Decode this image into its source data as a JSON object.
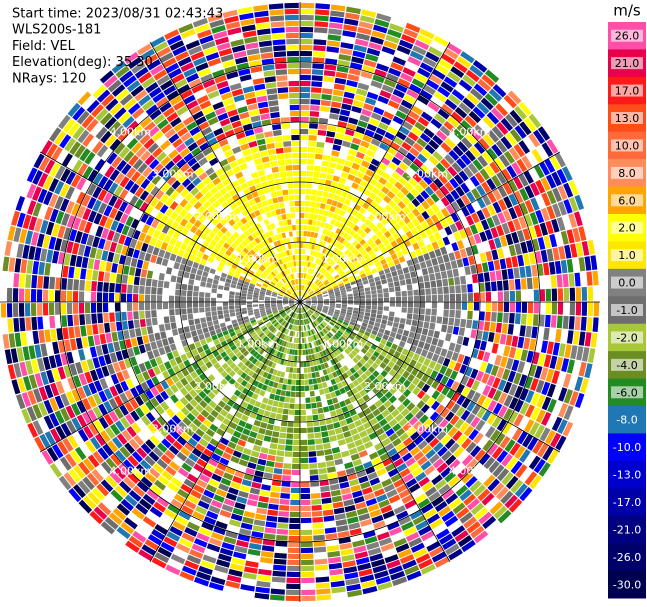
{
  "chart_data": {
    "type": "ppi",
    "header": [
      "Start time: 2023/08/31 02:43:43",
      "WLS200s-181",
      "Field: VEL",
      "Elevation(deg): 35.30",
      "NRays: 120"
    ],
    "colorbar_title": "m/s",
    "colorbar": [
      {
        "value": 26,
        "label": "26.0",
        "color": "#ff4fa8"
      },
      {
        "value": 21,
        "label": "21.0",
        "color": "#e8004a"
      },
      {
        "value": 17,
        "label": "17.0",
        "color": "#ff1a1a"
      },
      {
        "value": 13,
        "label": "13.0",
        "color": "#ff4d1a"
      },
      {
        "value": 10,
        "label": "10.0",
        "color": "#ff6a3a"
      },
      {
        "value": 8,
        "label": "8.0",
        "color": "#ff8c5a"
      },
      {
        "value": 6,
        "label": "6.0",
        "color": "#ffa500"
      },
      {
        "value": 2,
        "label": "2.0",
        "color": "#ffff00"
      },
      {
        "value": 1,
        "label": "1.0",
        "color": "#ffe600"
      },
      {
        "value": 0,
        "label": "0.0",
        "color": "#808080"
      },
      {
        "value": -1,
        "label": "-1.0",
        "color": "#6e6e6e"
      },
      {
        "value": -2,
        "label": "-2.0",
        "color": "#a8c83a"
      },
      {
        "value": -4,
        "label": "-4.0",
        "color": "#6b8e23"
      },
      {
        "value": -6,
        "label": "-6.0",
        "color": "#228b22"
      },
      {
        "value": -8,
        "label": "-8.0",
        "color": "#1f77b4"
      },
      {
        "value": -10,
        "label": "-10.0",
        "color": "#0000ff"
      },
      {
        "value": -13,
        "label": "-13.0",
        "color": "#0000cd"
      },
      {
        "value": -17,
        "label": "-17.0",
        "color": "#0000aa"
      },
      {
        "value": -21,
        "label": "-21.0",
        "color": "#000080"
      },
      {
        "value": -26,
        "label": "-26.0",
        "color": "#00006b"
      },
      {
        "value": -30,
        "label": "-30.0",
        "color": "#000050"
      }
    ],
    "rlim": [
      0,
      5
    ],
    "rings": [
      {
        "value": 1,
        "label": "1.00km"
      },
      {
        "value": 2,
        "label": "2.00km"
      },
      {
        "value": 3,
        "label": "3.00km"
      },
      {
        "value": 4,
        "label": "4.00km"
      }
    ]
  }
}
